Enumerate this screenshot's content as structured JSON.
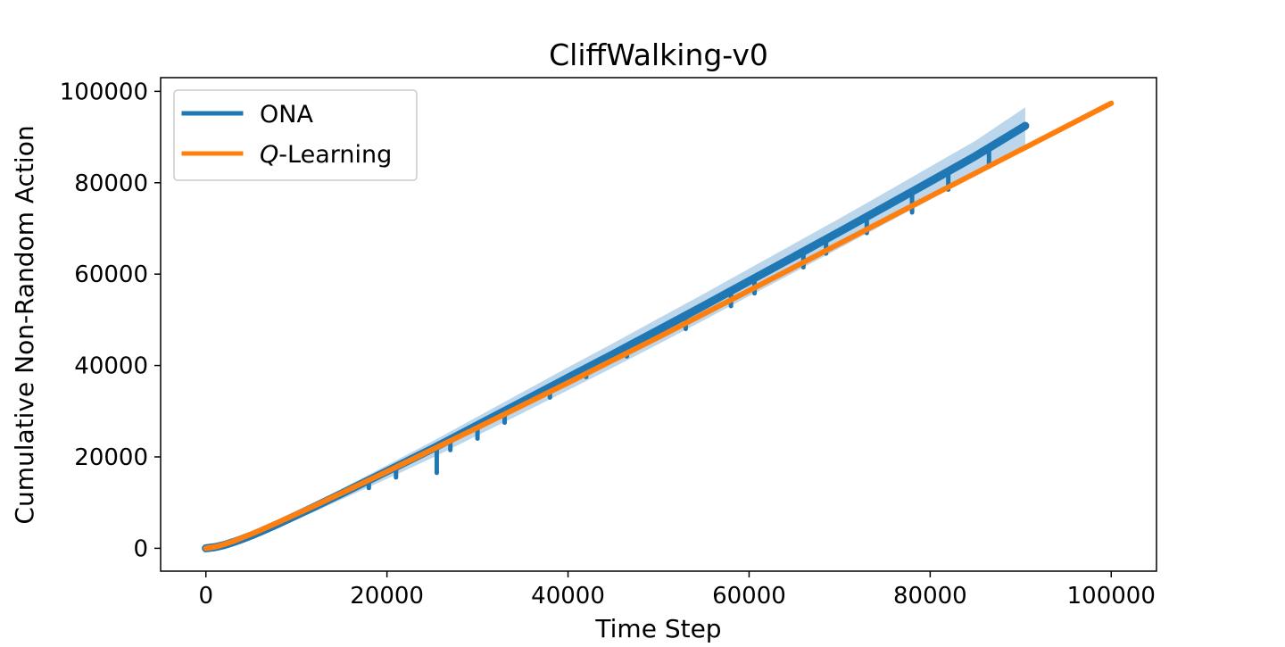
{
  "chart_data": {
    "type": "line",
    "title": "CliffWalking-v0",
    "xlabel": "Time Step",
    "ylabel": "Cumulative Non-Random Action",
    "xlim": [
      -5000,
      105000
    ],
    "ylim": [
      -5000,
      103000
    ],
    "xticks": [
      0,
      20000,
      40000,
      60000,
      80000,
      100000
    ],
    "yticks": [
      0,
      20000,
      40000,
      60000,
      80000,
      100000
    ],
    "xtick_labels": [
      "0",
      "20000",
      "40000",
      "60000",
      "80000",
      "100000"
    ],
    "ytick_labels": [
      "0",
      "20000",
      "40000",
      "60000",
      "80000",
      "100000"
    ],
    "grid": false,
    "legend_position": "top-left",
    "series": [
      {
        "name": "ONA",
        "legend_prefix": "",
        "legend_suffix": "ONA",
        "color": "#1f77b4",
        "band_color": "#a6c8e4",
        "x": [
          0,
          1000,
          2000,
          3000,
          4000,
          5000,
          6000,
          8000,
          10000,
          12000,
          15000,
          20000,
          25000,
          30000,
          35000,
          40000,
          45000,
          50000,
          55000,
          60000,
          65000,
          70000,
          75000,
          80000,
          85000,
          90500
        ],
        "y": [
          0,
          200,
          600,
          1100,
          1700,
          2300,
          3000,
          4600,
          6300,
          8000,
          10700,
          15200,
          19800,
          24700,
          29600,
          34600,
          39600,
          44700,
          49900,
          55200,
          60400,
          65700,
          71000,
          76300,
          81700,
          87500
        ],
        "upper": [
          0,
          300,
          800,
          1500,
          2300,
          3200,
          4100,
          6000,
          8000,
          10000,
          13000,
          18200,
          23400,
          28800,
          34200,
          39600,
          44900,
          50300,
          55700,
          61200,
          66700,
          72200,
          77800,
          83500,
          89200,
          96500
        ],
        "dips": [
          {
            "x": 18000,
            "y": 13200
          },
          {
            "x": 21000,
            "y": 15500
          },
          {
            "x": 25500,
            "y": 16500
          },
          {
            "x": 27000,
            "y": 21500
          },
          {
            "x": 30000,
            "y": 24000
          },
          {
            "x": 33000,
            "y": 27500
          },
          {
            "x": 38000,
            "y": 33000
          },
          {
            "x": 42000,
            "y": 37500
          },
          {
            "x": 46500,
            "y": 42000
          },
          {
            "x": 53000,
            "y": 48000
          },
          {
            "x": 58000,
            "y": 53000
          },
          {
            "x": 60600,
            "y": 55800
          },
          {
            "x": 66000,
            "y": 61500
          },
          {
            "x": 68500,
            "y": 64500
          },
          {
            "x": 73000,
            "y": 69000
          },
          {
            "x": 78000,
            "y": 73500
          },
          {
            "x": 82000,
            "y": 78500
          },
          {
            "x": 86500,
            "y": 83500
          }
        ]
      },
      {
        "name": "Q-Learning",
        "legend_prefix": "Q",
        "legend_suffix": "-Learning",
        "color": "#ff7f0e",
        "x": [
          0,
          1000,
          2000,
          3000,
          4000,
          5000,
          6000,
          8000,
          10000,
          12000,
          15000,
          20000,
          30000,
          40000,
          50000,
          60000,
          70000,
          80000,
          90000,
          100000
        ],
        "y": [
          0,
          300,
          850,
          1500,
          2300,
          3100,
          3950,
          5700,
          7500,
          9300,
          12100,
          16800,
          26400,
          36200,
          46200,
          56400,
          66700,
          77000,
          87200,
          97400
        ]
      }
    ]
  }
}
